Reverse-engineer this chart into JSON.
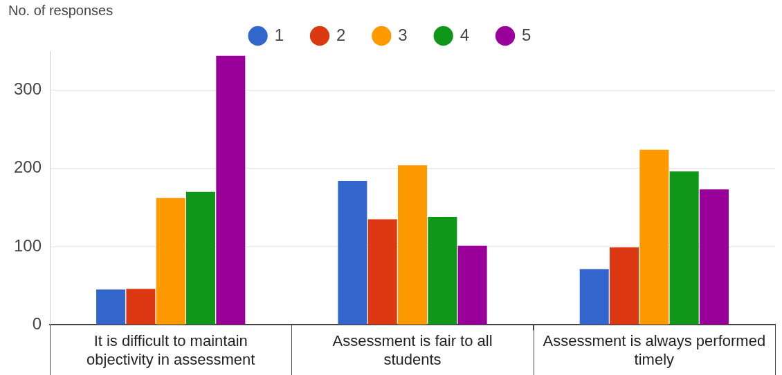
{
  "chart_data": {
    "type": "bar",
    "ylabel": "No. of responses",
    "categories": [
      "It is difficult to maintain objectivity in assessment",
      "Assessment is fair to all students",
      "Assessment is always performed timely"
    ],
    "series": [
      {
        "name": "1",
        "color": "#3366cc",
        "values": [
          45,
          184,
          71
        ]
      },
      {
        "name": "2",
        "color": "#dc3912",
        "values": [
          46,
          135,
          99
        ]
      },
      {
        "name": "3",
        "color": "#ff9900",
        "values": [
          162,
          204,
          224
        ]
      },
      {
        "name": "4",
        "color": "#109618",
        "values": [
          170,
          138,
          196
        ]
      },
      {
        "name": "5",
        "color": "#990099",
        "values": [
          344,
          101,
          173
        ]
      }
    ],
    "ylim": [
      0,
      350
    ],
    "yticks": [
      0,
      100,
      200,
      300
    ],
    "grid": "y",
    "legend": "top"
  }
}
